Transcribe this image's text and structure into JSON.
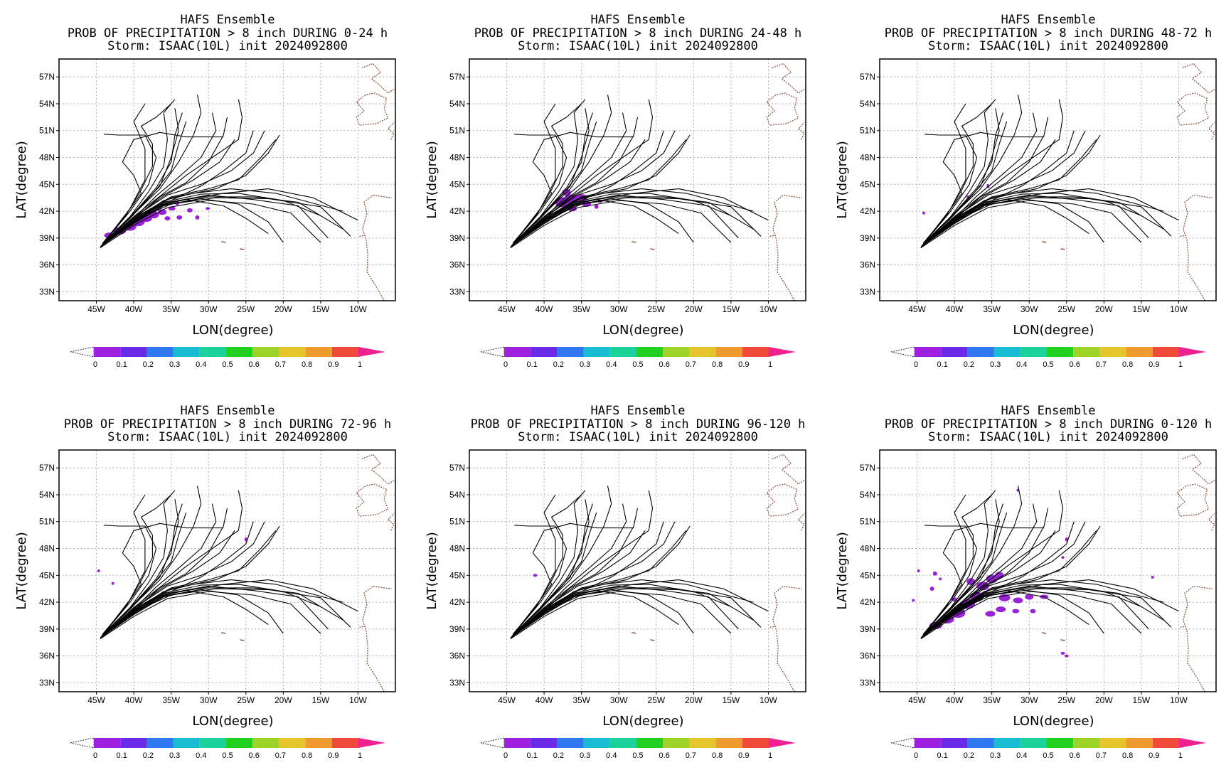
{
  "common": {
    "model": "HAFS Ensemble",
    "storm": "Storm: ISAAC(10L) init 2024092800",
    "xlabel": "LON(degree)",
    "ylabel": "LAT(degree)",
    "lat_ticks": [
      "57N",
      "54N",
      "51N",
      "48N",
      "45N",
      "42N",
      "39N",
      "36N",
      "33N"
    ],
    "lon_ticks": [
      "45W",
      "40W",
      "35W",
      "30W",
      "25W",
      "20W",
      "15W",
      "10W"
    ],
    "colorbar": {
      "labels": [
        "0",
        "0.1",
        "0.2",
        "0.3",
        "0.4",
        "0.5",
        "0.6",
        "0.7",
        "0.8",
        "0.9",
        "1"
      ],
      "colors": [
        "#a020e0",
        "#6a2ae8",
        "#2f78f0",
        "#17bcd2",
        "#1ad29a",
        "#22d022",
        "#9ed42a",
        "#e6c42c",
        "#ee9a2e",
        "#f04a3a"
      ],
      "over_color": "#f02090"
    },
    "map": {
      "lon_range": [
        -50,
        -5
      ],
      "lat_range": [
        32,
        59
      ],
      "grid": true,
      "prob_color": "#9a22d8",
      "track_color": "#000000",
      "coast_color": "#8b4a3a"
    }
  },
  "panels": [
    {
      "title2": "PROB OF PRECIPITATION > 8 inch DURING  0-24 h",
      "period": "0-24 h"
    },
    {
      "title2": "PROB OF PRECIPITATION > 8 inch DURING 24-48 h",
      "period": "24-48 h"
    },
    {
      "title2": "PROB OF PRECIPITATION > 8 inch DURING 48-72 h",
      "period": "48-72 h"
    },
    {
      "title2": "PROB OF PRECIPITATION > 8 inch DURING 72-96 h",
      "period": "72-96 h"
    },
    {
      "title2": "PROB OF PRECIPITATION > 8 inch DURING 96-120 h",
      "period": "96-120 h"
    },
    {
      "title2": "PROB OF PRECIPITATION > 8 inch DURING 0-120 h",
      "period": "0-120 h"
    }
  ],
  "tracks": [
    [
      [
        -44.5,
        38.0
      ],
      [
        -40,
        40.6
      ],
      [
        -36,
        42.6
      ],
      [
        -30,
        43.6
      ],
      [
        -24,
        43.6
      ],
      [
        -18,
        43.0
      ],
      [
        -12,
        40.0
      ]
    ],
    [
      [
        -44.4,
        38.1
      ],
      [
        -40,
        40.8
      ],
      [
        -36,
        42.9
      ],
      [
        -30,
        43.8
      ],
      [
        -24,
        43.3
      ],
      [
        -18,
        42.6
      ],
      [
        -14,
        39.0
      ]
    ],
    [
      [
        -44.5,
        37.9
      ],
      [
        -40,
        40.4
      ],
      [
        -35.5,
        42.4
      ],
      [
        -30,
        43.2
      ],
      [
        -24,
        42.8
      ],
      [
        -19,
        41.8
      ],
      [
        -15,
        38.5
      ]
    ],
    [
      [
        -44.3,
        38.2
      ],
      [
        -40,
        40.9
      ],
      [
        -36,
        43.0
      ],
      [
        -31,
        43.9
      ],
      [
        -26,
        44.0
      ],
      [
        -20,
        43.2
      ],
      [
        -15,
        41.5
      ]
    ],
    [
      [
        -44.5,
        38.0
      ],
      [
        -40,
        40.7
      ],
      [
        -36,
        42.7
      ],
      [
        -31,
        43.4
      ],
      [
        -26,
        42.8
      ],
      [
        -22,
        40.8
      ],
      [
        -20,
        38.5
      ]
    ],
    [
      [
        -44.2,
        38.3
      ],
      [
        -40,
        41.0
      ],
      [
        -36,
        43.2
      ],
      [
        -32,
        44.0
      ],
      [
        -27,
        44.5
      ],
      [
        -21,
        44.0
      ],
      [
        -12,
        42.0
      ]
    ],
    [
      [
        -44.4,
        38.1
      ],
      [
        -40,
        40.8
      ],
      [
        -37,
        42.6
      ],
      [
        -33,
        43.3
      ],
      [
        -28,
        42.6
      ],
      [
        -25,
        41.2
      ],
      [
        -22,
        39.5
      ]
    ],
    [
      [
        -44.3,
        38.2
      ],
      [
        -40,
        41.1
      ],
      [
        -36.5,
        43.6
      ],
      [
        -33,
        45.2
      ],
      [
        -30,
        47.5
      ],
      [
        -28,
        50.5
      ],
      [
        -27.5,
        52.5
      ]
    ],
    [
      [
        -44.2,
        38.3
      ],
      [
        -40,
        41.2
      ],
      [
        -37,
        43.7
      ],
      [
        -34,
        45.8
      ],
      [
        -31,
        48.0
      ],
      [
        -29,
        51.0
      ],
      [
        -29.5,
        53.0
      ]
    ],
    [
      [
        -44.3,
        38.2
      ],
      [
        -40.5,
        41.2
      ],
      [
        -37.5,
        43.9
      ],
      [
        -35,
        46.5
      ],
      [
        -34,
        49.5
      ],
      [
        -33,
        52.0
      ]
    ],
    [
      [
        -44.2,
        38.3
      ],
      [
        -40.5,
        41.4
      ],
      [
        -38,
        44.2
      ],
      [
        -36,
        47.0
      ],
      [
        -35.5,
        50.0
      ],
      [
        -36,
        53.0
      ],
      [
        -34.5,
        54.5
      ]
    ],
    [
      [
        -44.2,
        38.4
      ],
      [
        -41,
        41.6
      ],
      [
        -39,
        44.4
      ],
      [
        -37.5,
        47.0
      ],
      [
        -37.5,
        49.5
      ],
      [
        -39,
        51.5
      ],
      [
        -37,
        52.5
      ],
      [
        -35,
        54
      ]
    ],
    [
      [
        -44.1,
        38.4
      ],
      [
        -41,
        41.7
      ],
      [
        -39,
        44.0
      ],
      [
        -40,
        46.0
      ],
      [
        -41.5,
        47.5
      ],
      [
        -40,
        50.0
      ],
      [
        -36.5,
        50.8
      ],
      [
        -33,
        50.3
      ],
      [
        -28,
        50.3
      ]
    ],
    [
      [
        -44.0,
        38.5
      ],
      [
        -40.5,
        42.0
      ],
      [
        -38,
        45.0
      ],
      [
        -37,
        48.0
      ],
      [
        -38.5,
        50.5
      ],
      [
        -42,
        50.5
      ],
      [
        -44,
        50.6
      ]
    ],
    [
      [
        -44.0,
        38.4
      ],
      [
        -40,
        41.7
      ],
      [
        -36.5,
        44.5
      ],
      [
        -34,
        47.5
      ],
      [
        -32,
        50.5
      ],
      [
        -31,
        53.0
      ],
      [
        -31.5,
        55.0
      ]
    ],
    [
      [
        -44.1,
        38.3
      ],
      [
        -40,
        41.4
      ],
      [
        -36,
        44.0
      ],
      [
        -33,
        46.0
      ],
      [
        -29.5,
        48.0
      ],
      [
        -26,
        50.0
      ],
      [
        -25.5,
        52.5
      ],
      [
        -26,
        54.5
      ]
    ],
    [
      [
        -44.1,
        38.3
      ],
      [
        -40,
        41.3
      ],
      [
        -35.5,
        43.8
      ],
      [
        -31,
        45.0
      ],
      [
        -27,
        46.5
      ],
      [
        -24,
        48.5
      ],
      [
        -22.5,
        51.0
      ]
    ],
    [
      [
        -44.2,
        38.2
      ],
      [
        -40,
        41.2
      ],
      [
        -35,
        43.6
      ],
      [
        -30,
        44.5
      ],
      [
        -26,
        45.5
      ],
      [
        -23,
        48.0
      ],
      [
        -21,
        50.0
      ]
    ],
    [
      [
        -44.2,
        38.2
      ],
      [
        -40,
        41.1
      ],
      [
        -35,
        43.5
      ],
      [
        -29,
        44.5
      ],
      [
        -25,
        46.0
      ],
      [
        -22,
        48.5
      ],
      [
        -20.5,
        50.5
      ]
    ],
    [
      [
        -44.0,
        38.5
      ],
      [
        -40.5,
        42.3
      ],
      [
        -38.5,
        45.5
      ],
      [
        -38.5,
        49.0
      ],
      [
        -40,
        52.0
      ],
      [
        -38.5,
        54.0
      ]
    ],
    [
      [
        -44.1,
        38.4
      ],
      [
        -40,
        41.8
      ],
      [
        -37,
        44.6
      ],
      [
        -35,
        47.5
      ],
      [
        -34.5,
        50.5
      ],
      [
        -33.5,
        53.0
      ]
    ],
    [
      [
        -44.3,
        38.1
      ],
      [
        -40,
        41.0
      ],
      [
        -35,
        43.0
      ],
      [
        -28,
        44.0
      ],
      [
        -22,
        44.5
      ],
      [
        -16,
        43.5
      ],
      [
        -10,
        41.0
      ]
    ],
    [
      [
        -44.3,
        38.1
      ],
      [
        -40,
        40.9
      ],
      [
        -35,
        42.8
      ],
      [
        -29,
        43.5
      ],
      [
        -22,
        43.4
      ],
      [
        -15,
        42.5
      ],
      [
        -11,
        39.2
      ]
    ],
    [
      [
        -44.2,
        38.3
      ],
      [
        -40,
        41.3
      ],
      [
        -36,
        43.7
      ],
      [
        -32,
        45.5
      ],
      [
        -28.5,
        47.5
      ],
      [
        -26.5,
        50.0
      ]
    ],
    [
      [
        -44.0,
        38.5
      ],
      [
        -40,
        41.8
      ],
      [
        -36.5,
        44.8
      ],
      [
        -35,
        48.0
      ],
      [
        -34,
        51.0
      ],
      [
        -34.5,
        53.5
      ]
    ],
    [
      [
        -44.2,
        38.2
      ],
      [
        -40,
        41.0
      ],
      [
        -35,
        43.2
      ],
      [
        -31,
        44.8
      ],
      [
        -28,
        46.5
      ],
      [
        -25,
        48.5
      ],
      [
        -24,
        51.0
      ]
    ]
  ],
  "coast": [
    [
      [
        -9.5,
        58.0
      ],
      [
        -8.0,
        58.5
      ],
      [
        -7.0,
        57.5
      ],
      [
        -8.2,
        56.8
      ],
      [
        -7.0,
        56.0
      ],
      [
        -6.0,
        55.2
      ],
      [
        -5.2,
        55.6
      ]
    ],
    [
      [
        -10.2,
        54.2
      ],
      [
        -9.0,
        55.0
      ],
      [
        -7.8,
        55.2
      ],
      [
        -6.2,
        54.6
      ],
      [
        -6.5,
        53.5
      ],
      [
        -6.0,
        52.4
      ],
      [
        -7.5,
        51.8
      ],
      [
        -9.8,
        51.6
      ],
      [
        -10.2,
        52.5
      ],
      [
        -9.2,
        53.2
      ],
      [
        -10.2,
        54.2
      ]
    ],
    [
      [
        -5.6,
        50.0
      ],
      [
        -5.2,
        50.7
      ],
      [
        -6.0,
        51.2
      ],
      [
        -5.2,
        51.9
      ]
    ],
    [
      [
        -6.5,
        32.0
      ],
      [
        -7.5,
        33.5
      ],
      [
        -8.8,
        35.2
      ],
      [
        -8.7,
        37.0
      ],
      [
        -8.9,
        38.8
      ],
      [
        -9.4,
        40.0
      ],
      [
        -8.8,
        41.8
      ],
      [
        -9.2,
        43.0
      ],
      [
        -8.0,
        43.8
      ],
      [
        -6.5,
        43.6
      ],
      [
        -5.5,
        43.5
      ]
    ],
    [
      [
        -9.8,
        39.2
      ],
      [
        -9.0,
        39.3
      ]
    ]
  ],
  "islands": [
    [
      -25.5,
      37.8
    ],
    [
      -28.0,
      38.6
    ]
  ],
  "blobs": [
    [
      [
        -43.2,
        39.3,
        8,
        4
      ],
      [
        -41.9,
        39.8,
        9,
        5
      ],
      [
        -40.5,
        40.3,
        9,
        6
      ],
      [
        -39.4,
        40.8,
        9,
        6
      ],
      [
        -38.3,
        41.2,
        8,
        5
      ],
      [
        -37.3,
        41.6,
        7,
        5
      ],
      [
        -36.2,
        41.9,
        6,
        4
      ],
      [
        -34.9,
        42.3,
        5,
        3
      ],
      [
        -33.9,
        41.3,
        4,
        3
      ],
      [
        -32.5,
        42.1,
        4,
        3
      ],
      [
        -31.5,
        41.3,
        3,
        3
      ],
      [
        -30.1,
        42.3,
        3,
        2
      ],
      [
        -35.5,
        41.2,
        4,
        3
      ],
      [
        -34.2,
        42.9,
        3,
        3
      ]
    ],
    [
      [
        -37.5,
        43.0,
        11,
        7
      ],
      [
        -36.3,
        43.4,
        10,
        6
      ],
      [
        -35.0,
        43.5,
        8,
        5
      ],
      [
        -37.0,
        44.1,
        6,
        5
      ],
      [
        -34.3,
        42.8,
        6,
        4
      ],
      [
        -36.2,
        42.3,
        6,
        4
      ],
      [
        -33.0,
        42.5,
        3,
        3
      ],
      [
        -32.5,
        43.1,
        3,
        2
      ]
    ],
    [
      [
        -44.1,
        41.8,
        2,
        2
      ],
      [
        -35.5,
        44.8,
        2,
        3
      ],
      [
        -38.2,
        43.6,
        2,
        2
      ]
    ],
    [
      [
        -44.7,
        45.5,
        2,
        2
      ],
      [
        -42.8,
        44.1,
        2,
        2
      ],
      [
        -25.0,
        49.0,
        2,
        3
      ]
    ],
    [
      [
        -41.2,
        45.0,
        3,
        2
      ]
    ],
    [
      [
        -42.5,
        39.4,
        9,
        5
      ],
      [
        -41.0,
        40.1,
        10,
        6
      ],
      [
        -39.5,
        40.8,
        10,
        7
      ],
      [
        -38.2,
        41.8,
        10,
        7
      ],
      [
        -37.0,
        42.6,
        9,
        7
      ],
      [
        -36.2,
        43.8,
        9,
        6
      ],
      [
        -35.0,
        44.6,
        8,
        6
      ],
      [
        -34.0,
        45.0,
        6,
        5
      ],
      [
        -37.8,
        44.3,
        6,
        5
      ],
      [
        -33.3,
        42.5,
        8,
        5
      ],
      [
        -31.5,
        42.2,
        7,
        4
      ],
      [
        -30.0,
        42.6,
        6,
        4
      ],
      [
        -28.0,
        42.6,
        6,
        3
      ],
      [
        -33.8,
        41.2,
        7,
        4
      ],
      [
        -35.2,
        40.7,
        7,
        4
      ],
      [
        -31.8,
        41.0,
        5,
        3
      ],
      [
        -29.5,
        41.0,
        4,
        3
      ],
      [
        -42.6,
        45.2,
        3,
        3
      ],
      [
        -44.8,
        45.5,
        2,
        2
      ],
      [
        -43.0,
        43.5,
        3,
        3
      ],
      [
        -41.9,
        44.6,
        2,
        2
      ],
      [
        -40.0,
        42.3,
        4,
        3
      ],
      [
        -45.5,
        42.2,
        2,
        2
      ],
      [
        -31.5,
        54.5,
        2,
        2
      ],
      [
        -25.0,
        49.0,
        2,
        3
      ],
      [
        -25.5,
        47.0,
        2,
        2
      ],
      [
        -13.5,
        44.8,
        2,
        2
      ],
      [
        -25.5,
        36.3,
        3,
        2
      ],
      [
        -25.0,
        36.0,
        3,
        2
      ]
    ]
  ]
}
